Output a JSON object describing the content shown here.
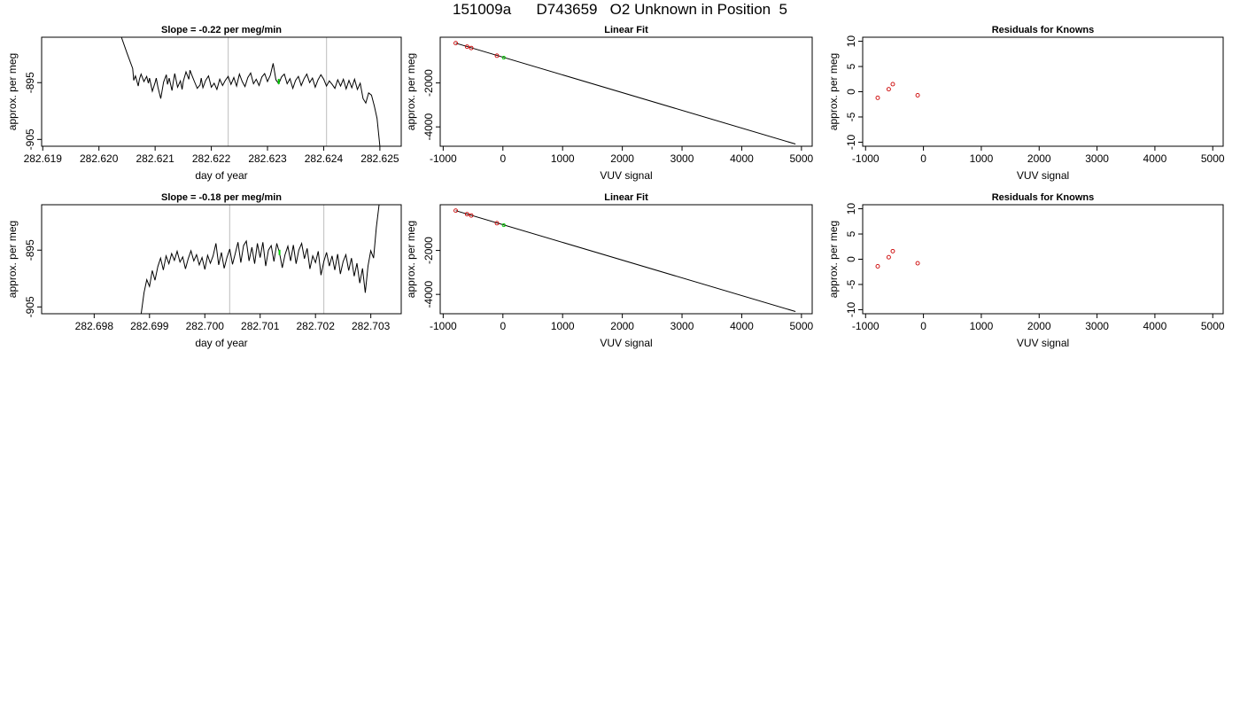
{
  "page": {
    "title": "151009a      D743659   O2 Unknown in Position  5"
  },
  "colors": {
    "trace": "#000000",
    "marker_known": "#cc0000",
    "marker_unknown": "#00cc00",
    "vline": "#c8c8c8",
    "axis": "#000000"
  },
  "chart_data": [
    {
      "type": "line",
      "title": "Slope =  -0.22  per meg/min",
      "xlabel": "day of year",
      "ylabel": "approx. per meg",
      "xlim": [
        282.61898,
        282.62538
      ],
      "ylim": [
        -906.2,
        -887.0
      ],
      "xticks": [
        282.619,
        282.62,
        282.621,
        282.622,
        282.623,
        282.624,
        282.625
      ],
      "xticklabels": [
        "282.619",
        "282.620",
        "282.621",
        "282.622",
        "282.623",
        "282.624",
        "282.625"
      ],
      "yticks": [
        -905,
        -895
      ],
      "yticklabels": [
        "-905",
        "-895"
      ],
      "vlines": [
        282.6223,
        282.62405
      ],
      "marker": {
        "x": 282.6232,
        "y": -894.8
      },
      "series": [
        {
          "x": [
            282.6204,
            282.6205,
            282.6206,
            282.62062,
            282.62065,
            282.6207,
            282.62072,
            282.62075,
            282.6208,
            282.62085,
            282.62088,
            282.6209,
            282.62095,
            282.621,
            282.62102,
            282.62105,
            282.6211,
            282.62115,
            282.6212,
            282.62122,
            282.62125,
            282.6213,
            282.62132,
            282.62135,
            282.6214,
            282.62145,
            282.62148,
            282.6215,
            282.62155,
            282.6216,
            282.62162,
            282.62165,
            282.6217,
            282.62175,
            282.6218,
            282.62182,
            282.62185,
            282.6219,
            282.62195,
            282.622,
            282.62205,
            282.6221,
            282.62215,
            282.6222,
            282.62225,
            282.6223,
            282.62235,
            282.6224,
            282.62245,
            282.6225,
            282.62255,
            282.6226,
            282.62265,
            282.6227,
            282.62275,
            282.6228,
            282.62285,
            282.6229,
            282.62295,
            282.623,
            282.62305,
            282.6231,
            282.62315,
            282.6232,
            282.62325,
            282.6233,
            282.62335,
            282.6234,
            282.62345,
            282.6235,
            282.62355,
            282.6236,
            282.62365,
            282.6237,
            282.62375,
            282.6238,
            282.62385,
            282.6239,
            282.62395,
            282.624,
            282.62405,
            282.6241,
            282.62415,
            282.6242,
            282.62425,
            282.6243,
            282.62435,
            282.6244,
            282.62445,
            282.6245,
            282.62455,
            282.6246,
            282.62465,
            282.6247,
            282.62475,
            282.6248,
            282.62485,
            282.6249,
            282.62495,
            282.625
          ],
          "y": [
            -887.0,
            -889.8,
            -892.5,
            -894.6,
            -893.8,
            -895.6,
            -894.4,
            -893.5,
            -894.8,
            -893.9,
            -895.1,
            -894.2,
            -896.5,
            -895.0,
            -894.2,
            -895.8,
            -897.8,
            -894.9,
            -893.6,
            -895.3,
            -894.2,
            -896.4,
            -895.1,
            -893.4,
            -895.8,
            -894.7,
            -896.2,
            -894.8,
            -893.1,
            -894.4,
            -892.8,
            -893.6,
            -894.8,
            -896.0,
            -895.4,
            -894.2,
            -895.9,
            -894.6,
            -893.8,
            -895.8,
            -895.1,
            -896.2,
            -894.4,
            -895.5,
            -894.6,
            -893.9,
            -895.3,
            -894.1,
            -895.6,
            -893.5,
            -894.8,
            -895.7,
            -894.1,
            -893.3,
            -895.2,
            -894.4,
            -895.5,
            -894.0,
            -893.4,
            -894.8,
            -893.7,
            -891.6,
            -894.5,
            -895.2,
            -894.0,
            -893.5,
            -895.2,
            -894.3,
            -896.0,
            -894.6,
            -893.9,
            -895.5,
            -894.3,
            -893.5,
            -895.0,
            -894.2,
            -895.8,
            -894.5,
            -893.6,
            -894.4,
            -895.6,
            -894.7,
            -895.3,
            -896.0,
            -894.5,
            -895.6,
            -894.4,
            -896.1,
            -894.6,
            -895.9,
            -894.4,
            -896.2,
            -895.1,
            -897.8,
            -898.6,
            -896.8,
            -897.2,
            -899.1,
            -901.3,
            -906.2
          ]
        }
      ]
    },
    {
      "type": "line",
      "title": "Linear Fit",
      "xlabel": "VUV signal",
      "ylabel": "approx. per meg",
      "xlim": [
        -1050,
        5180
      ],
      "ylim": [
        -4880,
        80
      ],
      "xticks": [
        -1000,
        0,
        1000,
        2000,
        3000,
        4000,
        5000
      ],
      "xticklabels": [
        "-1000",
        "0",
        "1000",
        "2000",
        "3000",
        "4000",
        "5000"
      ],
      "yticks": [
        -4000,
        -2000
      ],
      "yticklabels": [
        "-4000",
        "-2000"
      ],
      "fit_line": {
        "x": [
          -790,
          4900
        ],
        "y": [
          -190,
          -4780
        ]
      },
      "points_known": {
        "x": [
          -790,
          -600,
          -530,
          -100
        ],
        "y": [
          -190,
          -350,
          -410,
          -760
        ]
      },
      "points_unknown": {
        "x": [
          15
        ],
        "y": [
          -850
        ]
      }
    },
    {
      "type": "scatter",
      "title": "Residuals for Knowns",
      "xlabel": "VUV signal",
      "ylabel": "approx. per meg",
      "xlim": [
        -1050,
        5180
      ],
      "ylim": [
        -10.8,
        10.8
      ],
      "xticks": [
        -1000,
        0,
        1000,
        2000,
        3000,
        4000,
        5000
      ],
      "xticklabels": [
        "-1000",
        "0",
        "1000",
        "2000",
        "3000",
        "4000",
        "5000"
      ],
      "yticks": [
        -10,
        -5,
        0,
        5,
        10
      ],
      "yticklabels": [
        "-10",
        "-5",
        "0",
        "5",
        "10"
      ],
      "points_known": {
        "x": [
          -790,
          -600,
          -530,
          -100
        ],
        "y": [
          -1.2,
          0.5,
          1.5,
          -0.7
        ]
      }
    },
    {
      "type": "line",
      "title": "Slope =  -0.18  per meg/min",
      "xlabel": "day of year",
      "ylabel": "approx. per meg",
      "xlim": [
        282.69705,
        282.70355
      ],
      "ylim": [
        -906.2,
        -887.0
      ],
      "xticks": [
        282.698,
        282.699,
        282.7,
        282.701,
        282.702,
        282.703
      ],
      "xticklabels": [
        "282.698",
        "282.699",
        "282.700",
        "282.701",
        "282.702",
        "282.703"
      ],
      "yticks": [
        -905,
        -895
      ],
      "yticklabels": [
        "-905",
        "-895"
      ],
      "vlines": [
        282.70045,
        282.70215
      ],
      "marker": {
        "x": 282.70135,
        "y": -895.4
      },
      "series": [
        {
          "x": [
            282.69885,
            282.6989,
            282.69895,
            282.699,
            282.69905,
            282.6991,
            282.69915,
            282.6992,
            282.69925,
            282.6993,
            282.69935,
            282.6994,
            282.69945,
            282.6995,
            282.69955,
            282.6996,
            282.69965,
            282.6997,
            282.69975,
            282.6998,
            282.69985,
            282.6999,
            282.69995,
            282.7,
            282.70005,
            282.7001,
            282.70015,
            282.7002,
            282.70025,
            282.7003,
            282.70035,
            282.7004,
            282.70045,
            282.7005,
            282.70055,
            282.7006,
            282.70065,
            282.7007,
            282.70075,
            282.7008,
            282.70085,
            282.7009,
            282.70095,
            282.701,
            282.70105,
            282.7011,
            282.70115,
            282.7012,
            282.70125,
            282.7013,
            282.70135,
            282.7014,
            282.70145,
            282.7015,
            282.70155,
            282.7016,
            282.70165,
            282.7017,
            282.70175,
            282.7018,
            282.70185,
            282.7019,
            282.70195,
            282.702,
            282.70205,
            282.7021,
            282.70215,
            282.7022,
            282.70225,
            282.7023,
            282.70235,
            282.7024,
            282.70245,
            282.7025,
            282.70255,
            282.7026,
            282.70265,
            282.7027,
            282.70275,
            282.7028,
            282.70285,
            282.7029,
            282.70295,
            282.703,
            282.70305,
            282.7031,
            282.70315,
            282.7032
          ],
          "y": [
            -906.2,
            -902.5,
            -900.2,
            -901.4,
            -898.6,
            -900.3,
            -897.9,
            -896.4,
            -898.5,
            -896.0,
            -897.4,
            -895.6,
            -896.8,
            -895.2,
            -897.1,
            -896.2,
            -898.3,
            -896.5,
            -895.1,
            -896.9,
            -895.8,
            -897.6,
            -896.3,
            -898.4,
            -895.9,
            -897.3,
            -896.0,
            -893.8,
            -897.6,
            -895.4,
            -898.2,
            -896.3,
            -894.8,
            -897.5,
            -895.6,
            -893.6,
            -897.2,
            -894.2,
            -893.4,
            -896.9,
            -894.5,
            -897.4,
            -893.8,
            -896.3,
            -893.6,
            -897.8,
            -895.0,
            -894.2,
            -897.0,
            -893.8,
            -895.5,
            -898.1,
            -895.8,
            -894.3,
            -896.9,
            -894.1,
            -897.4,
            -895.0,
            -893.8,
            -896.5,
            -894.7,
            -898.3,
            -896.0,
            -897.2,
            -895.2,
            -899.4,
            -897.0,
            -895.4,
            -897.8,
            -896.0,
            -898.5,
            -895.7,
            -899.2,
            -897.0,
            -895.8,
            -898.6,
            -896.4,
            -899.6,
            -897.3,
            -900.8,
            -898.2,
            -902.5,
            -897.8,
            -895.1,
            -896.4,
            -891.0,
            -887.0,
            -886.5
          ]
        }
      ]
    },
    {
      "type": "line",
      "title": "Linear Fit",
      "xlabel": "VUV signal",
      "ylabel": "approx. per meg",
      "xlim": [
        -1050,
        5180
      ],
      "ylim": [
        -4880,
        80
      ],
      "xticks": [
        -1000,
        0,
        1000,
        2000,
        3000,
        4000,
        5000
      ],
      "xticklabels": [
        "-1000",
        "0",
        "1000",
        "2000",
        "3000",
        "4000",
        "5000"
      ],
      "yticks": [
        -4000,
        -2000
      ],
      "yticklabels": [
        "-4000",
        "-2000"
      ],
      "fit_line": {
        "x": [
          -790,
          4900
        ],
        "y": [
          -190,
          -4780
        ]
      },
      "points_known": {
        "x": [
          -790,
          -600,
          -530,
          -100
        ],
        "y": [
          -190,
          -350,
          -410,
          -760
        ]
      },
      "points_unknown": {
        "x": [
          15
        ],
        "y": [
          -850
        ]
      }
    },
    {
      "type": "scatter",
      "title": "Residuals for Knowns",
      "xlabel": "VUV signal",
      "ylabel": "approx. per meg",
      "xlim": [
        -1050,
        5180
      ],
      "ylim": [
        -10.8,
        10.8
      ],
      "xticks": [
        -1000,
        0,
        1000,
        2000,
        3000,
        4000,
        5000
      ],
      "xticklabels": [
        "-1000",
        "0",
        "1000",
        "2000",
        "3000",
        "4000",
        "5000"
      ],
      "yticks": [
        -10,
        -5,
        0,
        5,
        10
      ],
      "yticklabels": [
        "-10",
        "-5",
        "0",
        "5",
        "10"
      ],
      "points_known": {
        "x": [
          -790,
          -600,
          -530,
          -100
        ],
        "y": [
          -1.4,
          0.4,
          1.6,
          -0.8
        ]
      }
    }
  ]
}
